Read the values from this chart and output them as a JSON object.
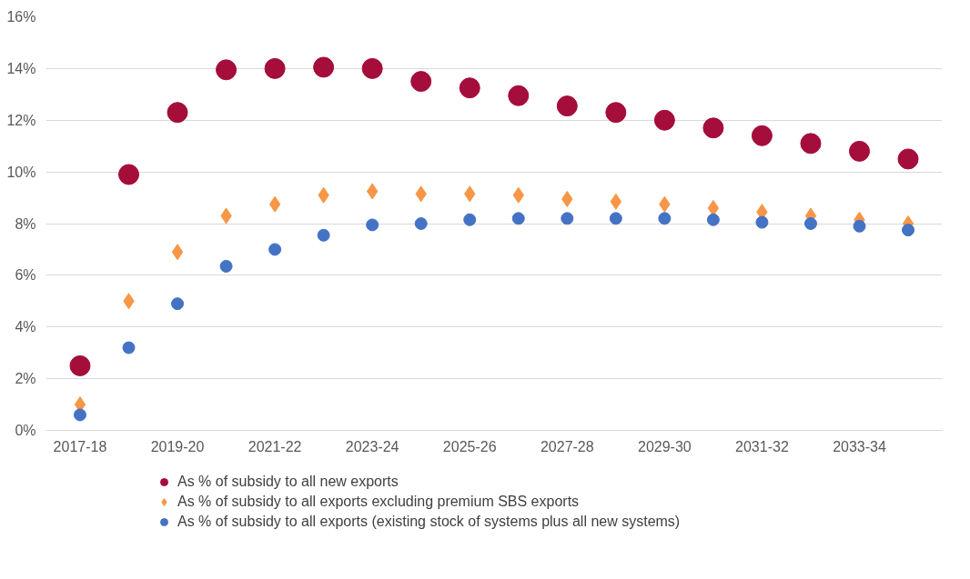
{
  "chart_data": {
    "type": "scatter",
    "categories": [
      "2017-18",
      null,
      "2019-20",
      null,
      "2021-22",
      null,
      "2023-24",
      null,
      "2025-26",
      null,
      "2027-28",
      null,
      "2029-30",
      null,
      "2031-32",
      null,
      "2033-34",
      null
    ],
    "series": [
      {
        "name": "As % of subsidy to all new exports",
        "color": "#a50d3b",
        "marker": "circle",
        "values": [
          2.5,
          9.9,
          12.3,
          13.95,
          14.0,
          14.05,
          14.0,
          13.5,
          13.25,
          12.95,
          12.55,
          12.3,
          12.0,
          11.7,
          11.4,
          11.1,
          10.8,
          10.5
        ]
      },
      {
        "name": "As % of subsidy to all exports excluding premium SBS exports",
        "color": "#f79646",
        "marker": "diamond",
        "values": [
          1.0,
          5.0,
          6.9,
          8.3,
          8.75,
          9.1,
          9.25,
          9.15,
          9.15,
          9.1,
          8.95,
          8.85,
          8.75,
          8.6,
          8.45,
          8.3,
          8.15,
          8.0
        ]
      },
      {
        "name": "As % of subsidy to all exports (existing stock of systems plus all new systems)",
        "color": "#4472c4",
        "marker": "circle",
        "values": [
          0.6,
          3.2,
          4.9,
          6.35,
          7.0,
          7.55,
          7.95,
          8.0,
          8.15,
          8.2,
          8.2,
          8.2,
          8.2,
          8.15,
          8.05,
          8.0,
          7.9,
          7.75
        ]
      }
    ],
    "ylim": [
      0,
      16
    ],
    "yticks": [
      {
        "value": 0,
        "label": "0%"
      },
      {
        "value": 2,
        "label": "2%"
      },
      {
        "value": 4,
        "label": "4%"
      },
      {
        "value": 6,
        "label": "6%"
      },
      {
        "value": 8,
        "label": "8%"
      },
      {
        "value": 10,
        "label": "10%"
      },
      {
        "value": 12,
        "label": "12%"
      },
      {
        "value": 14,
        "label": "14%"
      },
      {
        "value": 16,
        "label": "16%"
      }
    ],
    "grid": "y",
    "legend": "bottom"
  }
}
